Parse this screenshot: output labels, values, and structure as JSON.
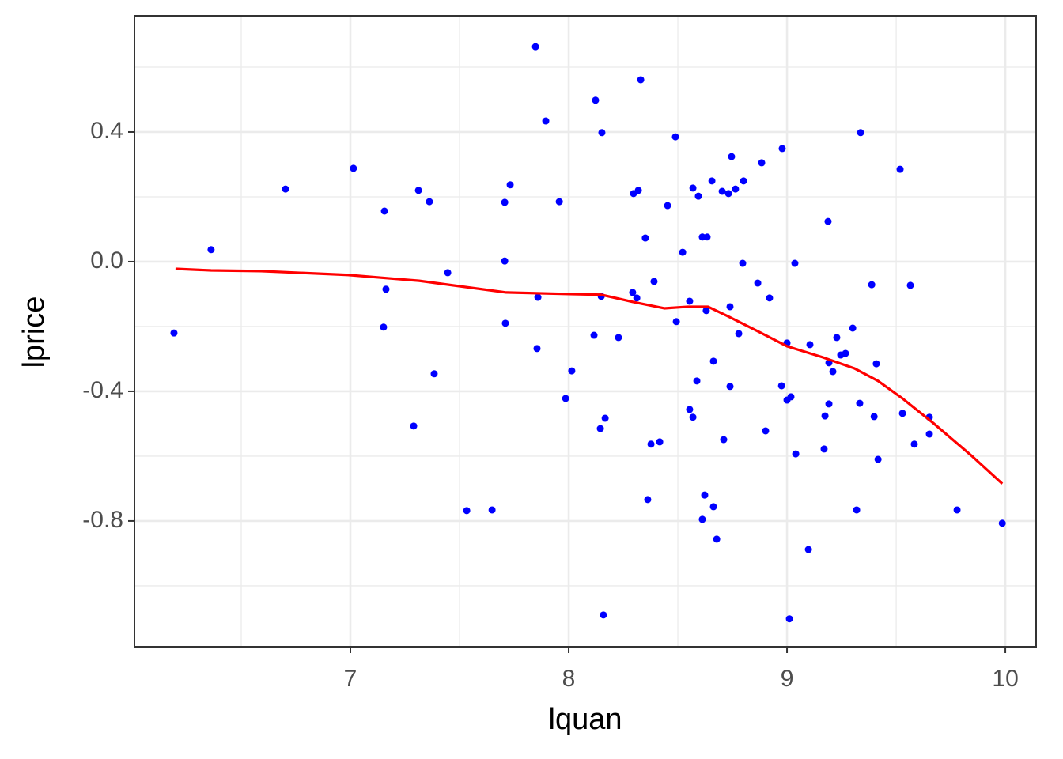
{
  "chart_data": {
    "type": "scatter",
    "xlabel": "lquan",
    "ylabel": "lprice",
    "xlim": [
      6.011,
      10.141
    ],
    "ylim": [
      -1.188,
      0.7585
    ],
    "xticks": [
      7,
      8,
      9,
      10
    ],
    "yticks": [
      0.4,
      {
        "value": 0.0,
        "label": "0.0"
      },
      -0.4,
      -0.8
    ],
    "xminorticks": [
      6.5,
      7.5,
      8.5,
      9.5
    ],
    "yminorticks": [
      0.6,
      0.2,
      -0.2,
      -0.6,
      -1.0
    ],
    "grid": true,
    "series": [
      {
        "type": "scatter",
        "color": "#0000ff",
        "x": [
          6.192,
          6.362,
          6.703,
          7.014,
          7.156,
          7.163,
          7.152,
          7.29,
          7.312,
          7.362,
          7.384,
          7.446,
          7.533,
          7.649,
          7.707,
          7.707,
          7.71,
          7.732,
          7.848,
          7.895,
          7.859,
          7.855,
          7.957,
          7.986,
          8.014,
          8.123,
          8.152,
          8.149,
          8.116,
          8.145,
          8.167,
          8.159,
          8.228,
          8.33,
          8.297,
          8.319,
          8.293,
          8.312,
          8.351,
          8.391,
          8.377,
          8.417,
          8.362,
          8.453,
          8.489,
          8.493,
          8.522,
          8.554,
          8.569,
          8.594,
          8.612,
          8.634,
          8.63,
          8.587,
          8.554,
          8.569,
          8.623,
          8.612,
          8.663,
          8.678,
          8.663,
          8.656,
          8.703,
          8.732,
          8.746,
          8.764,
          8.801,
          8.797,
          8.739,
          8.779,
          8.739,
          8.71,
          8.866,
          8.884,
          8.92,
          8.902,
          8.978,
          8.975,
          9.0,
          9.0,
          9.018,
          9.036,
          9.04,
          9.011,
          9.105,
          9.098,
          9.188,
          9.192,
          9.192,
          9.174,
          9.17,
          9.21,
          9.228,
          9.246,
          9.268,
          9.301,
          9.337,
          9.333,
          9.319,
          9.388,
          9.399,
          9.409,
          9.417,
          9.518,
          9.529,
          9.565,
          9.583,
          9.652,
          9.652,
          9.779,
          9.986
        ],
        "values": [
          -0.22,
          0.037,
          0.224,
          0.288,
          0.156,
          -0.085,
          -0.202,
          -0.507,
          0.22,
          0.185,
          -0.346,
          -0.034,
          -0.768,
          -0.766,
          0.183,
          0.002,
          -0.19,
          0.237,
          0.663,
          0.434,
          -0.11,
          -0.268,
          0.185,
          -0.422,
          -0.337,
          0.498,
          0.398,
          -0.107,
          -0.227,
          -0.515,
          -0.483,
          -1.09,
          -0.234,
          0.561,
          0.21,
          0.22,
          -0.095,
          -0.112,
          0.073,
          -0.061,
          -0.563,
          -0.556,
          -0.734,
          0.173,
          0.385,
          -0.185,
          0.029,
          -0.122,
          0.227,
          0.202,
          0.076,
          0.076,
          -0.151,
          -0.368,
          -0.456,
          -0.48,
          -0.72,
          -0.795,
          -0.756,
          -0.856,
          -0.307,
          0.249,
          0.217,
          0.21,
          0.324,
          0.224,
          0.249,
          -0.005,
          -0.139,
          -0.222,
          -0.385,
          -0.549,
          -0.066,
          0.305,
          -0.112,
          -0.522,
          0.349,
          -0.383,
          -0.251,
          -0.427,
          -0.417,
          -0.005,
          -0.593,
          -1.102,
          -0.256,
          -0.888,
          0.124,
          -0.312,
          -0.439,
          -0.476,
          -0.578,
          -0.339,
          -0.234,
          -0.288,
          -0.283,
          -0.205,
          0.398,
          -0.437,
          -0.766,
          -0.071,
          -0.478,
          -0.315,
          -0.61,
          0.285,
          -0.468,
          -0.073,
          -0.563,
          -0.48,
          -0.532,
          -0.766,
          -0.807
        ]
      },
      {
        "type": "line",
        "color": "#ff0000",
        "x": [
          6.199,
          6.362,
          6.591,
          6.989,
          7.315,
          7.714,
          8.004,
          8.149,
          8.293,
          8.438,
          8.547,
          8.638,
          8.728,
          8.873,
          9.0,
          9.163,
          9.308,
          9.417,
          9.525,
          9.67,
          9.851,
          9.986
        ],
        "values": [
          -0.022,
          -0.027,
          -0.029,
          -0.041,
          -0.059,
          -0.095,
          -0.1,
          -0.102,
          -0.124,
          -0.144,
          -0.139,
          -0.139,
          -0.168,
          -0.217,
          -0.261,
          -0.295,
          -0.329,
          -0.368,
          -0.42,
          -0.498,
          -0.602,
          -0.685
        ]
      }
    ]
  }
}
